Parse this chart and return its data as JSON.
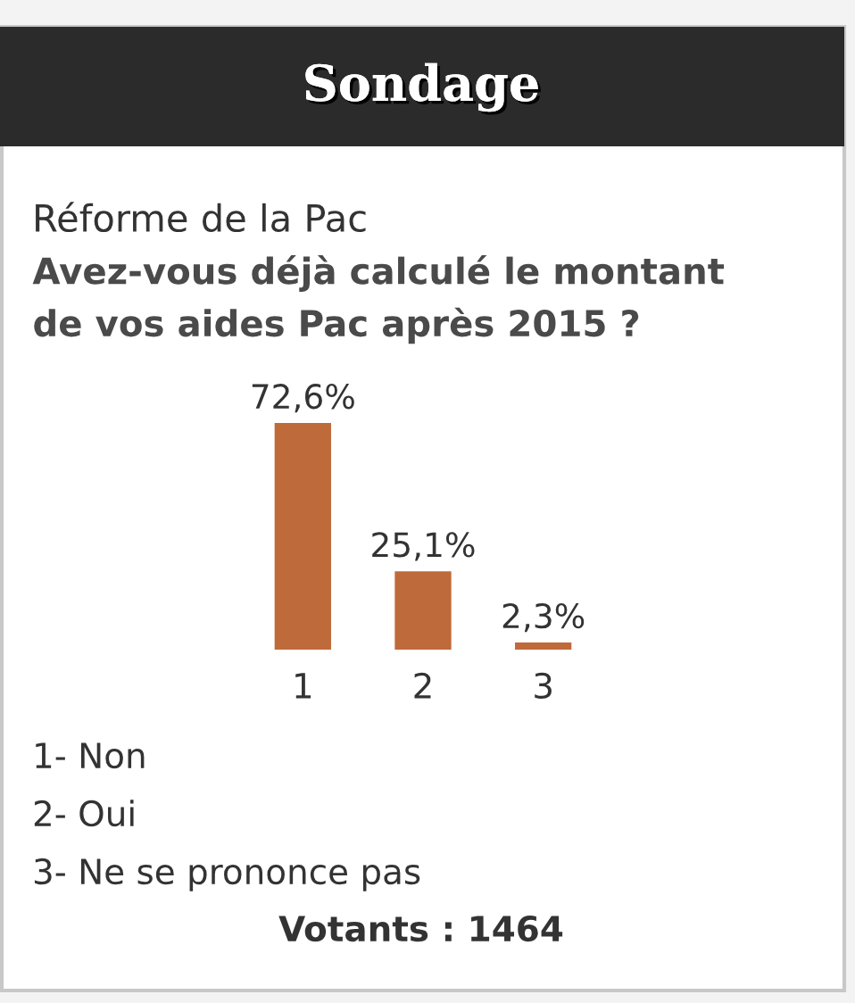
{
  "chart_data": {
    "type": "bar",
    "title": "Sondage",
    "subtitle": "Réforme de la Pac",
    "annotations": [
      "Avez-vous déjà calculé le montant de vos aides Pac après 2015 ?",
      "1- Non",
      "2- Oui",
      "3- Ne se prononce pas",
      "Votants : 1464"
    ],
    "categories": [
      "1",
      "2",
      "3"
    ],
    "values": [
      72.6,
      25.1,
      2.3
    ],
    "value_labels": [
      "72,6%",
      "25,1%",
      "2,3%"
    ],
    "color": "#bf6a3a"
  }
}
